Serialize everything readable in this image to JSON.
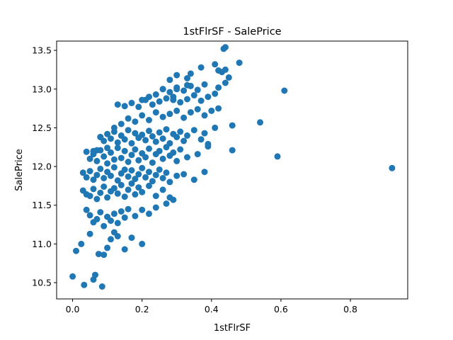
{
  "chart_data": {
    "type": "scatter",
    "title": "1stFlrSF - SalePrice",
    "xlabel": "1stFlrSF",
    "ylabel": "SalePrice",
    "xlim": [
      -0.046,
      0.965
    ],
    "ylim": [
      10.29,
      13.62
    ],
    "xticks": [
      0.0,
      0.2,
      0.4,
      0.6,
      0.8
    ],
    "xtick_labels": [
      "0.0",
      "0.2",
      "0.4",
      "0.6",
      "0.8"
    ],
    "yticks": [
      10.5,
      11.0,
      11.5,
      12.0,
      12.5,
      13.0,
      13.5
    ],
    "ytick_labels": [
      "10.5",
      "11.0",
      "11.5",
      "12.0",
      "12.5",
      "13.0",
      "13.5"
    ],
    "grid": false,
    "marker_color": "#1f77b4",
    "x": [
      0.0,
      0.01,
      0.025,
      0.033,
      0.05,
      0.06,
      0.065,
      0.075,
      0.085,
      0.09,
      0.1,
      0.11,
      0.12,
      0.13,
      0.15,
      0.17,
      0.2,
      0.04,
      0.05,
      0.06,
      0.07,
      0.08,
      0.09,
      0.1,
      0.11,
      0.12,
      0.13,
      0.14,
      0.15,
      0.16,
      0.18,
      0.2,
      0.22,
      0.24,
      0.27,
      0.29,
      0.03,
      0.04,
      0.05,
      0.06,
      0.07,
      0.08,
      0.09,
      0.1,
      0.11,
      0.12,
      0.13,
      0.14,
      0.15,
      0.16,
      0.17,
      0.18,
      0.19,
      0.2,
      0.22,
      0.24,
      0.26,
      0.28,
      0.03,
      0.04,
      0.05,
      0.06,
      0.07,
      0.08,
      0.09,
      0.1,
      0.11,
      0.12,
      0.13,
      0.14,
      0.15,
      0.16,
      0.17,
      0.18,
      0.19,
      0.2,
      0.21,
      0.22,
      0.23,
      0.24,
      0.25,
      0.26,
      0.27,
      0.28,
      0.3,
      0.32,
      0.35,
      0.38,
      0.04,
      0.05,
      0.06,
      0.07,
      0.08,
      0.09,
      0.1,
      0.11,
      0.12,
      0.13,
      0.14,
      0.15,
      0.16,
      0.17,
      0.18,
      0.19,
      0.2,
      0.21,
      0.22,
      0.23,
      0.24,
      0.25,
      0.26,
      0.27,
      0.28,
      0.29,
      0.3,
      0.31,
      0.33,
      0.36,
      0.39,
      0.06,
      0.07,
      0.08,
      0.09,
      0.1,
      0.11,
      0.12,
      0.13,
      0.14,
      0.15,
      0.16,
      0.17,
      0.18,
      0.19,
      0.2,
      0.21,
      0.22,
      0.23,
      0.24,
      0.25,
      0.26,
      0.27,
      0.28,
      0.29,
      0.3,
      0.31,
      0.32,
      0.33,
      0.35,
      0.37,
      0.38,
      0.39,
      0.41,
      0.08,
      0.1,
      0.12,
      0.14,
      0.16,
      0.18,
      0.2,
      0.22,
      0.24,
      0.26,
      0.28,
      0.3,
      0.32,
      0.34,
      0.36,
      0.38,
      0.4,
      0.42,
      0.13,
      0.15,
      0.17,
      0.19,
      0.21,
      0.23,
      0.25,
      0.27,
      0.29,
      0.31,
      0.33,
      0.35,
      0.37,
      0.39,
      0.41,
      0.2,
      0.22,
      0.24,
      0.26,
      0.28,
      0.3,
      0.32,
      0.34,
      0.36,
      0.38,
      0.42,
      0.44,
      0.26,
      0.28,
      0.3,
      0.33,
      0.34,
      0.37,
      0.42,
      0.45,
      0.48,
      0.43,
      0.3,
      0.33,
      0.29,
      0.41,
      0.44,
      0.435,
      0.44,
      0.46,
      0.46,
      0.54,
      0.59,
      0.61,
      0.92
    ],
    "y": [
      10.58,
      10.91,
      11.0,
      10.47,
      11.13,
      10.54,
      10.6,
      10.87,
      10.45,
      10.86,
      10.95,
      11.06,
      11.15,
      11.1,
      10.93,
      11.08,
      11.0,
      11.44,
      11.37,
      11.28,
      11.32,
      11.41,
      11.23,
      11.35,
      11.3,
      11.39,
      11.27,
      11.42,
      11.34,
      11.45,
      11.36,
      11.44,
      11.39,
      11.47,
      11.52,
      11.57,
      11.69,
      11.64,
      11.62,
      11.71,
      11.58,
      11.66,
      11.74,
      11.6,
      11.68,
      11.72,
      11.65,
      11.76,
      11.61,
      11.7,
      11.78,
      11.64,
      11.73,
      11.67,
      11.75,
      11.62,
      11.7,
      11.6,
      11.92,
      11.86,
      11.94,
      11.83,
      11.89,
      11.97,
      11.85,
      11.93,
      11.88,
      11.99,
      11.82,
      11.91,
      11.96,
      11.87,
      11.95,
      11.84,
      11.9,
      11.98,
      11.86,
      11.93,
      11.81,
      11.89,
      11.96,
      11.85,
      11.92,
      11.8,
      11.88,
      11.9,
      11.83,
      11.93,
      12.19,
      12.1,
      12.16,
      12.07,
      12.21,
      12.13,
      12.04,
      12.18,
      12.09,
      12.24,
      12.11,
      12.2,
      12.06,
      12.15,
      12.22,
      12.08,
      12.17,
      12.12,
      12.23,
      12.05,
      12.16,
      12.2,
      12.1,
      12.25,
      12.14,
      12.18,
      12.07,
      12.22,
      12.12,
      12.16,
      12.26,
      12.2,
      12.21,
      12.38,
      12.33,
      12.42,
      12.36,
      12.45,
      12.31,
      12.4,
      12.35,
      12.47,
      12.3,
      12.43,
      12.37,
      12.41,
      12.34,
      12.46,
      12.39,
      12.32,
      12.44,
      12.36,
      12.48,
      12.3,
      12.42,
      12.38,
      12.45,
      12.33,
      12.4,
      12.47,
      12.35,
      12.43,
      12.29,
      12.5,
      12.38,
      12.24,
      12.5,
      12.55,
      12.62,
      12.58,
      12.66,
      12.6,
      12.7,
      12.64,
      12.68,
      12.72,
      12.63,
      12.7,
      12.74,
      12.66,
      12.72,
      12.75,
      12.8,
      12.78,
      12.82,
      12.77,
      12.86,
      12.8,
      12.84,
      12.88,
      12.9,
      12.83,
      12.87,
      12.92,
      12.85,
      12.9,
      12.94,
      12.86,
      12.9,
      12.93,
      13.0,
      12.96,
      13.02,
      12.98,
      13.04,
      12.99,
      13.06,
      13.02,
      13.08,
      13.0,
      13.12,
      13.18,
      13.14,
      13.2,
      13.28,
      13.24,
      13.15,
      13.34,
      13.22,
      13.0,
      13.05,
      12.86,
      13.32,
      13.25,
      13.52,
      13.54,
      12.53,
      12.21,
      12.57,
      12.13,
      12.98,
      11.98
    ]
  }
}
